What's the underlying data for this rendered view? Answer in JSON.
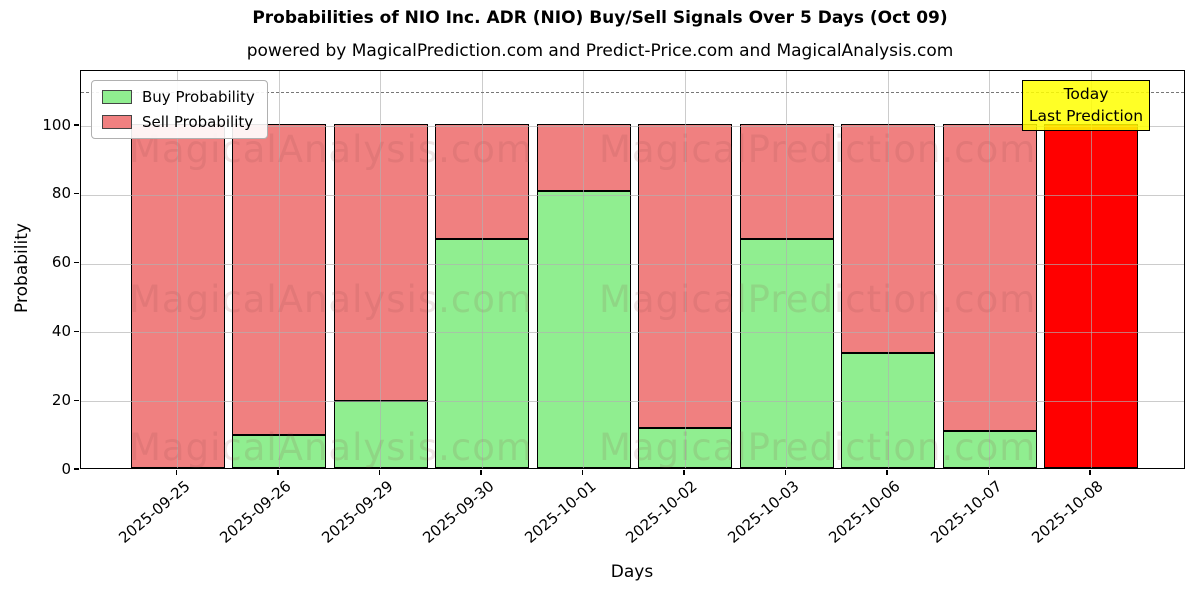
{
  "title": "Probabilities of NIO Inc. ADR (NIO) Buy/Sell Signals Over 5 Days (Oct 09)",
  "subtitle": "powered by MagicalPrediction.com and Predict-Price.com and MagicalAnalysis.com",
  "legend": {
    "buy_label": "Buy Probability",
    "sell_label": "Sell Probability"
  },
  "annotation": {
    "line1": "Today",
    "line2": "Last Prediction"
  },
  "axes": {
    "xlabel": "Days",
    "ylabel": "Probability",
    "yticks": [
      0,
      20,
      40,
      60,
      80,
      100
    ],
    "ylim": [
      0,
      116
    ],
    "dashed_line_y": 110,
    "grid": "on"
  },
  "watermarks": {
    "left": "MagicalAnalysis.com",
    "right": "MagicalPrediction.com"
  },
  "colors": {
    "buy": "#90EE90",
    "sell": "#F08080",
    "today": "#FF0000",
    "annotation_bg": "#FFFF00",
    "grid": "#b0b0b0",
    "dashed_line": "#777777",
    "bar_edge": "#000000"
  },
  "chart_data": {
    "type": "bar",
    "stacked": true,
    "title": "Probabilities of NIO Inc. ADR (NIO) Buy/Sell Signals Over 5 Days (Oct 09)",
    "xlabel": "Days",
    "ylabel": "Probability",
    "ylim": [
      0,
      116
    ],
    "legend_position": "upper left",
    "categories": [
      "2025-09-25",
      "2025-09-26",
      "2025-09-29",
      "2025-09-30",
      "2025-10-01",
      "2025-10-02",
      "2025-10-03",
      "2025-10-06",
      "2025-10-07",
      "2025-10-08"
    ],
    "series": [
      {
        "name": "Buy Probability",
        "color": "#90EE90",
        "values": [
          0,
          9.5,
          19.4,
          66.7,
          80.6,
          11.5,
          66.7,
          33.3,
          10.7,
          0
        ]
      },
      {
        "name": "Sell Probability",
        "color": "#F08080",
        "values": [
          100,
          90.5,
          80.6,
          33.3,
          19.4,
          88.5,
          33.3,
          66.7,
          89.3,
          100
        ]
      }
    ],
    "today_bar": {
      "category": "2025-10-08",
      "color": "#FF0000",
      "label": "Today Last Prediction"
    }
  }
}
